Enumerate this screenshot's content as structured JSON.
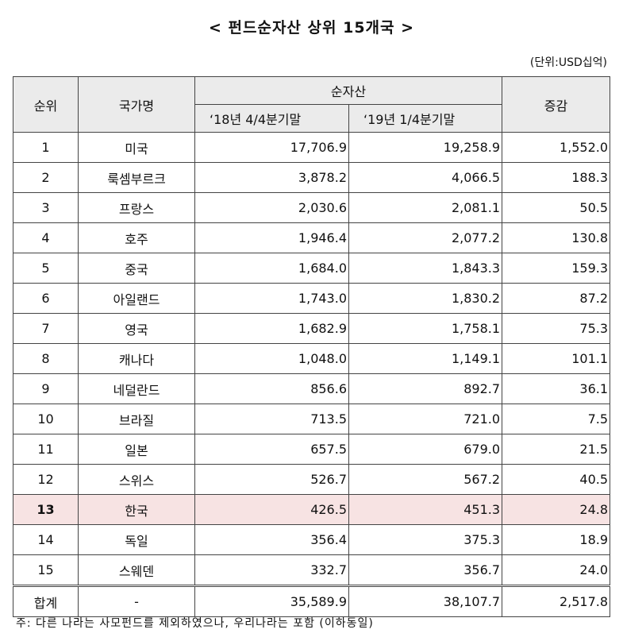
{
  "title": "< 펀드순자산 상위 15개국 >",
  "unit": "(단위:USD십억)",
  "headers": {
    "rank": "순위",
    "country": "국가명",
    "net_assets": "순자산",
    "col_q4_2018": "‘18년 4/4분기말",
    "col_q1_2019": "‘19년  1/4분기말",
    "change": "증감"
  },
  "rows": [
    {
      "rank": "1",
      "country": "미국",
      "q4_2018": "17,706.9",
      "q1_2019": "19,258.9",
      "change": "1,552.0"
    },
    {
      "rank": "2",
      "country": "룩셈부르크",
      "q4_2018": "3,878.2",
      "q1_2019": "4,066.5",
      "change": "188.3"
    },
    {
      "rank": "3",
      "country": "프랑스",
      "q4_2018": "2,030.6",
      "q1_2019": "2,081.1",
      "change": "50.5"
    },
    {
      "rank": "4",
      "country": "호주",
      "q4_2018": "1,946.4",
      "q1_2019": "2,077.2",
      "change": "130.8"
    },
    {
      "rank": "5",
      "country": "중국",
      "q4_2018": "1,684.0",
      "q1_2019": "1,843.3",
      "change": "159.3"
    },
    {
      "rank": "6",
      "country": "아일랜드",
      "q4_2018": "1,743.0",
      "q1_2019": "1,830.2",
      "change": "87.2"
    },
    {
      "rank": "7",
      "country": "영국",
      "q4_2018": "1,682.9",
      "q1_2019": "1,758.1",
      "change": "75.3"
    },
    {
      "rank": "8",
      "country": "캐나다",
      "q4_2018": "1,048.0",
      "q1_2019": "1,149.1",
      "change": "101.1"
    },
    {
      "rank": "9",
      "country": "네덜란드",
      "q4_2018": "856.6",
      "q1_2019": "892.7",
      "change": "36.1"
    },
    {
      "rank": "10",
      "country": "브라질",
      "q4_2018": "713.5",
      "q1_2019": "721.0",
      "change": "7.5"
    },
    {
      "rank": "11",
      "country": "일본",
      "q4_2018": "657.5",
      "q1_2019": "679.0",
      "change": "21.5"
    },
    {
      "rank": "12",
      "country": "스위스",
      "q4_2018": "526.7",
      "q1_2019": "567.2",
      "change": "40.5"
    },
    {
      "rank": "13",
      "country": "한국",
      "q4_2018": "426.5",
      "q1_2019": "451.3",
      "change": "24.8",
      "highlight": true
    },
    {
      "rank": "14",
      "country": "독일",
      "q4_2018": "356.4",
      "q1_2019": "375.3",
      "change": "18.9"
    },
    {
      "rank": "15",
      "country": "스웨덴",
      "q4_2018": "332.7",
      "q1_2019": "356.7",
      "change": "24.0"
    }
  ],
  "total": {
    "label": "합계",
    "country": "-",
    "q4_2018": "35,589.9",
    "q1_2019": "38,107.7",
    "change": "2,517.8"
  },
  "note": "주: 다른 나라는 사모펀드를 제외하였으나, 우리나라는 포함 (이하동일)",
  "colors": {
    "header_bg": "#ebebeb",
    "highlight_bg": "#f7e3e3",
    "border": "#444444"
  }
}
